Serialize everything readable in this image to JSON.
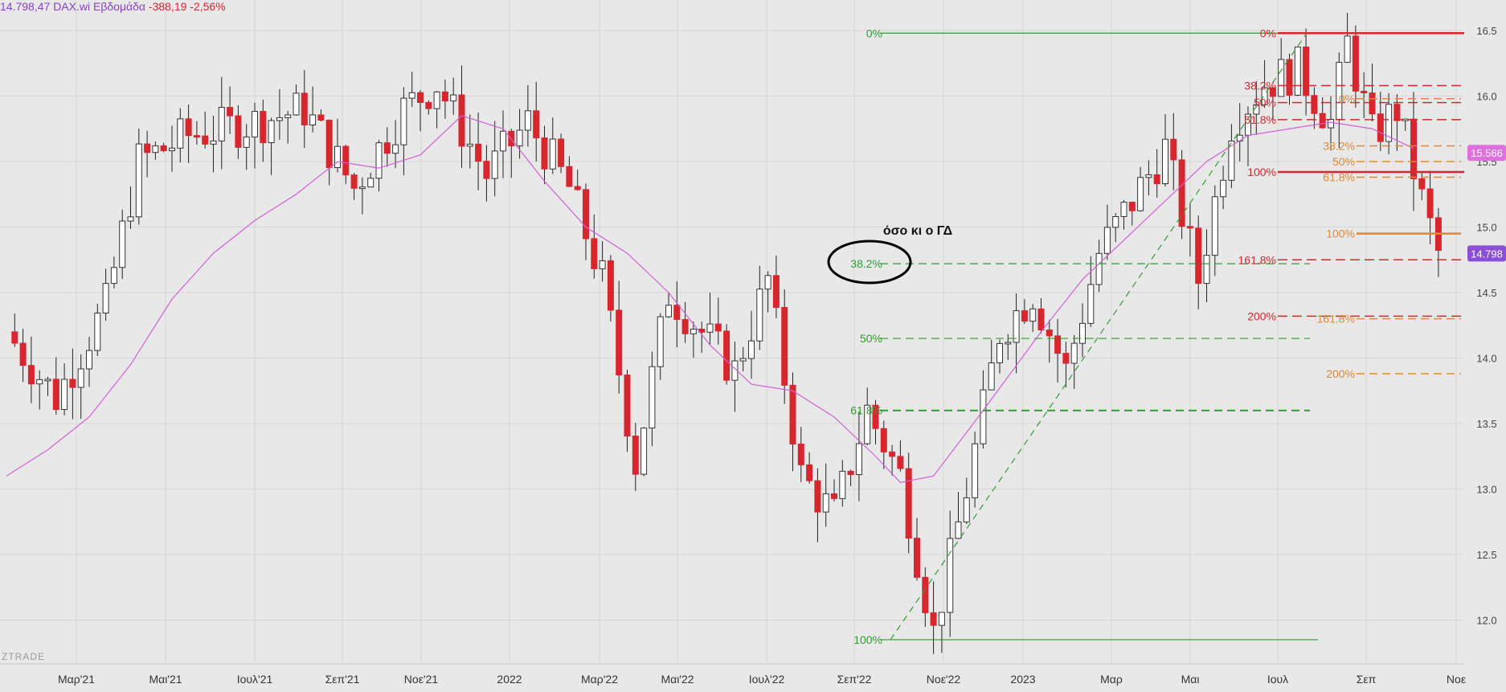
{
  "header": {
    "price": "14.798,47",
    "symbol": "DAX.wi",
    "period": "Εβδομάδα",
    "change": "-388,19",
    "change_pct": "-2,56%"
  },
  "watermark": "ZTRADE",
  "annotation": "όσο κι ο ΓΔ",
  "colors": {
    "background": "#e8e8e8",
    "up": "#ffffff",
    "down": "#d8262e",
    "sma": "#d25fd6",
    "fib_green": "#2f9e2f",
    "fib_red": "#d8262e",
    "fib_orange": "#d98a3a",
    "price_tag": "#8a4fd6",
    "sma_tag": "#e070e0"
  },
  "chart_data": {
    "type": "candlestick",
    "x_labels": [
      "Μαρ'21",
      "Μαι'21",
      "Ιουλ'21",
      "Σεπ'21",
      "Νοε'21",
      "2022",
      "Μαρ'22",
      "Μαι'22",
      "Ιουλ'22",
      "Σεπ'22",
      "Νοε'22",
      "2023",
      "Μαρ",
      "Μαι",
      "Ιουλ",
      "Σεπ",
      "Νοε"
    ],
    "y_ticks": [
      "12.0",
      "12.5",
      "13.0",
      "13.5",
      "14.0",
      "14.5",
      "15.0",
      "15.5",
      "16.0",
      "16.5"
    ],
    "y_range": [
      11.85,
      16.7
    ],
    "last_price_label": "14.798",
    "sma_label": "15.566",
    "sma": [
      [
        0,
        13.1
      ],
      [
        5,
        13.3
      ],
      [
        10,
        13.55
      ],
      [
        15,
        13.95
      ],
      [
        20,
        14.45
      ],
      [
        25,
        14.8
      ],
      [
        30,
        15.05
      ],
      [
        35,
        15.25
      ],
      [
        40,
        15.5
      ],
      [
        45,
        15.45
      ],
      [
        50,
        15.55
      ],
      [
        55,
        15.85
      ],
      [
        60,
        15.75
      ],
      [
        65,
        15.35
      ],
      [
        70,
        15.0
      ],
      [
        75,
        14.8
      ],
      [
        80,
        14.5
      ],
      [
        85,
        14.1
      ],
      [
        90,
        13.8
      ],
      [
        95,
        13.75
      ],
      [
        100,
        13.55
      ],
      [
        105,
        13.25
      ],
      [
        108,
        13.05
      ],
      [
        112,
        13.1
      ],
      [
        118,
        13.6
      ],
      [
        125,
        14.2
      ],
      [
        130,
        14.6
      ],
      [
        135,
        14.9
      ],
      [
        140,
        15.2
      ],
      [
        145,
        15.5
      ],
      [
        150,
        15.7
      ],
      [
        155,
        15.75
      ],
      [
        160,
        15.8
      ],
      [
        165,
        15.75
      ],
      [
        170,
        15.6
      ]
    ],
    "fib_green": {
      "levels": [
        [
          "0%",
          16.48
        ],
        [
          "38.2%",
          14.72
        ],
        [
          "50%",
          14.15
        ],
        [
          "61.8%",
          13.6
        ],
        [
          "100%",
          11.85
        ]
      ]
    },
    "fib_red": {
      "levels": [
        [
          "0%",
          16.48
        ],
        [
          "38.2%",
          16.08
        ],
        [
          "50%",
          15.95
        ],
        [
          "61.8%",
          15.82
        ],
        [
          "100%",
          15.42
        ],
        [
          "161.8%",
          14.75
        ],
        [
          "200%",
          14.32
        ]
      ]
    },
    "fib_orange": {
      "levels": [
        [
          "0%",
          15.98
        ],
        [
          "38.2%",
          15.62
        ],
        [
          "50%",
          15.5
        ],
        [
          "61.8%",
          15.38
        ],
        [
          "100%",
          14.95
        ],
        [
          "161.8%",
          14.3
        ],
        [
          "200%",
          13.88
        ]
      ]
    }
  }
}
